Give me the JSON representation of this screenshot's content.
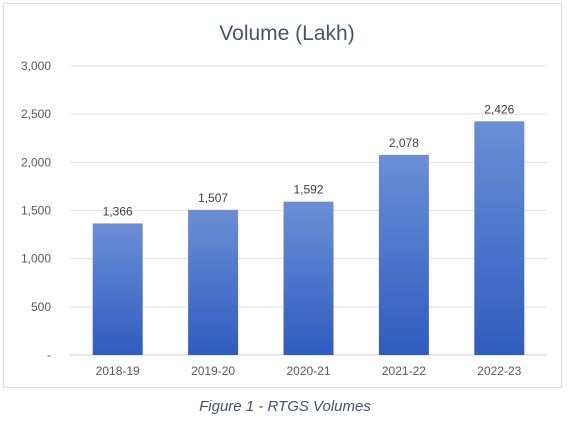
{
  "chart_data": {
    "type": "bar",
    "title": "Volume (Lakh)",
    "categories": [
      "2018-19",
      "2019-20",
      "2020-21",
      "2021-22",
      "2022-23"
    ],
    "values": [
      1366,
      1507,
      1592,
      2078,
      2426
    ],
    "value_labels": [
      "1,366",
      "1,507",
      "1,592",
      "2,078",
      "2,426"
    ],
    "ylim": [
      0,
      3000
    ],
    "y_ticks": [
      0,
      500,
      1000,
      1500,
      2000,
      2500,
      3000
    ],
    "y_tick_labels": [
      "-",
      "500",
      "1,000",
      "1,500",
      "2,000",
      "2,500",
      "3,000"
    ],
    "grid": true,
    "bar_color_top": "#6b8fd6",
    "bar_color_bottom": "#2f5cc0"
  },
  "caption": "Figure 1 - RTGS Volumes"
}
